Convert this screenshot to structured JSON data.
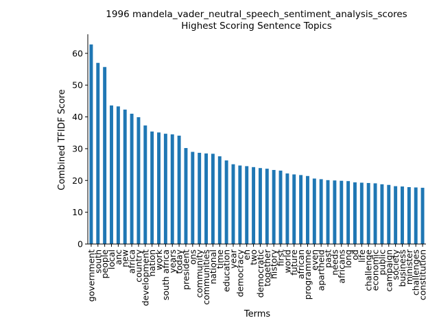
{
  "chart_data": {
    "type": "bar",
    "title": "1996 mandela_vader_neutral_speech_sentiment_analysis_scores",
    "subtitle": "Highest Scoring Sentence Topics",
    "xlabel": "Terms",
    "ylabel": "Combined TFIDF Score",
    "ylim": [
      0,
      66
    ],
    "yticks": [
      0,
      10,
      20,
      30,
      40,
      50,
      60
    ],
    "bar_color": "#1f77b4",
    "grid": false,
    "legend": "none",
    "categories": [
      "government",
      "south",
      "people",
      "local",
      "anc",
      "new",
      "africa",
      "country",
      "development",
      "nation",
      "work",
      "south africa",
      "years",
      "today",
      "president",
      "ons",
      "community",
      "communities",
      "national",
      "time",
      "education",
      "year",
      "democracy",
      "en",
      "two",
      "democratic",
      "together",
      "history",
      "first",
      "world",
      "future",
      "african",
      "programme",
      "even",
      "apartheid",
      "past",
      "needs",
      "africans",
      "long",
      "od",
      "life",
      "challenge",
      "economic",
      "public",
      "campaign",
      "society",
      "business",
      "minister",
      "challenges",
      "constitution"
    ],
    "values": [
      62.8,
      57.0,
      55.7,
      43.6,
      43.3,
      42.3,
      41.0,
      39.9,
      37.3,
      35.4,
      35.1,
      34.7,
      34.5,
      34.1,
      30.2,
      29.0,
      28.7,
      28.5,
      28.4,
      27.6,
      26.3,
      25.1,
      24.7,
      24.5,
      24.2,
      23.9,
      23.7,
      23.3,
      23.1,
      22.2,
      21.9,
      21.7,
      21.4,
      20.6,
      20.4,
      20.1,
      20.0,
      19.9,
      19.8,
      19.4,
      19.3,
      19.2,
      19.1,
      18.8,
      18.6,
      18.2,
      18.1,
      17.9,
      17.8,
      17.7
    ]
  }
}
